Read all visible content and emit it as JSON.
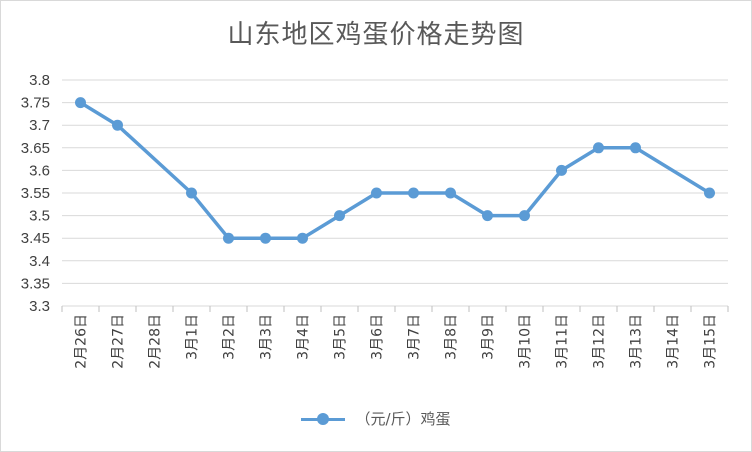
{
  "chart_data": {
    "type": "line",
    "title": "山东地区鸡蛋价格走势图",
    "categories": [
      "2月26日",
      "2月27日",
      "2月28日",
      "3月1日",
      "3月2日",
      "3月3日",
      "3月4日",
      "3月5日",
      "3月6日",
      "3月7日",
      "3月8日",
      "3月9日",
      "3月10日",
      "3月11日",
      "3月12日",
      "3月13日",
      "3月14日",
      "3月15日"
    ],
    "series": [
      {
        "name": "（元/斤）鸡蛋",
        "color": "#5b9bd5",
        "values": [
          3.75,
          3.7,
          null,
          3.55,
          3.45,
          3.45,
          3.45,
          3.5,
          3.55,
          3.55,
          3.55,
          3.5,
          3.5,
          3.6,
          3.65,
          3.65,
          null,
          3.55
        ]
      }
    ],
    "ylim": [
      3.3,
      3.8
    ],
    "yticks": [
      "3.3",
      "3.35",
      "3.4",
      "3.45",
      "3.5",
      "3.55",
      "3.6",
      "3.65",
      "3.7",
      "3.75",
      "3.8"
    ],
    "grid": true,
    "legend_position": "bottom"
  }
}
